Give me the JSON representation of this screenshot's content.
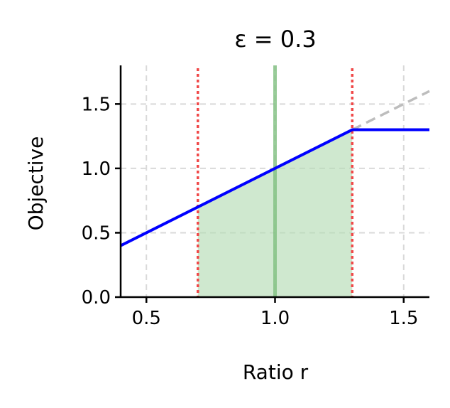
{
  "chart_data": {
    "type": "line",
    "title": "ε = 0.3",
    "xlabel": "Ratio r",
    "ylabel": "Objective",
    "xlim": [
      0.4,
      1.6
    ],
    "ylim": [
      0.0,
      1.8
    ],
    "xticks": [
      0.5,
      1.0,
      1.5
    ],
    "xtick_labels": [
      "0.5",
      "1.0",
      "1.5"
    ],
    "yticks": [
      0.0,
      0.5,
      1.0,
      1.5
    ],
    "ytick_labels": [
      "0.0",
      "0.5",
      "1.0",
      "1.5"
    ],
    "grid": true,
    "series": [
      {
        "style": "solid",
        "color": "#0000ff",
        "x": [
          0.4,
          1.3,
          1.6
        ],
        "y": [
          0.4,
          1.3,
          1.3
        ]
      },
      {
        "style": "dashed",
        "color": "#bdbdbd",
        "x": [
          1.3,
          1.6
        ],
        "y": [
          1.3,
          1.6
        ]
      }
    ],
    "shaded_region": {
      "color": "#b5dcb5",
      "x": [
        0.7,
        1.3
      ],
      "y_top": [
        0.7,
        1.3
      ],
      "y_bottom": 0.0
    },
    "vlines": [
      {
        "x": 0.7,
        "color": "#f04848",
        "style": "dotted"
      },
      {
        "x": 1.3,
        "color": "#f04848",
        "style": "dotted"
      },
      {
        "x": 1.0,
        "color": "#7fbf7f",
        "style": "solid"
      }
    ]
  }
}
